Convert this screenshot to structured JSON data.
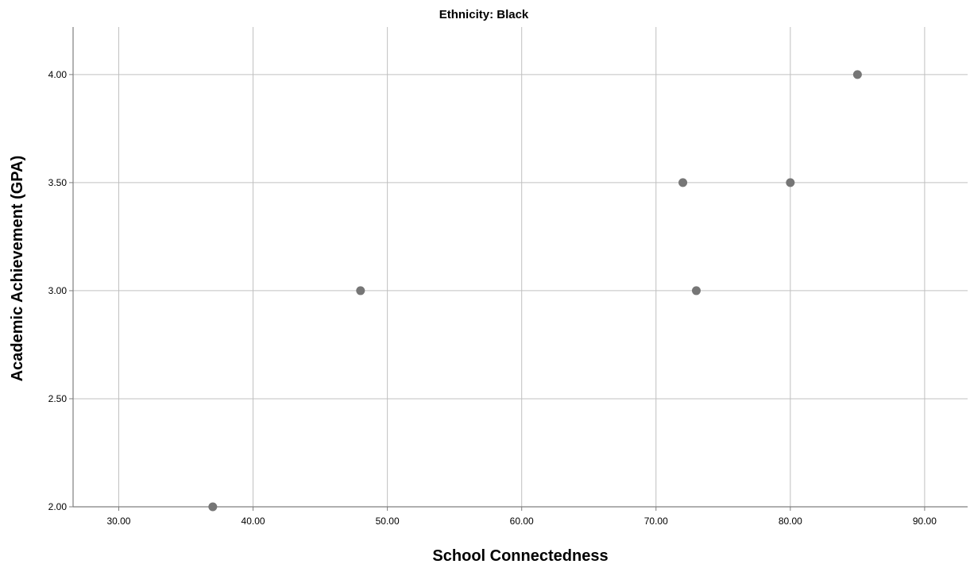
{
  "chart_data": {
    "type": "scatter",
    "title": "Ethnicity: Black",
    "xlabel": "School Connectedness",
    "ylabel": "Academic Achievement (GPA)",
    "xlim": [
      26.6,
      93.2
    ],
    "ylim": [
      2.0,
      4.22
    ],
    "xticks": [
      30,
      40,
      50,
      60,
      70,
      80,
      90
    ],
    "xtick_labels": [
      "30.00",
      "40.00",
      "50.00",
      "60.00",
      "70.00",
      "80.00",
      "90.00"
    ],
    "yticks": [
      2.0,
      2.5,
      3.0,
      3.5,
      4.0
    ],
    "ytick_labels": [
      "2.00",
      "2.50",
      "3.00",
      "3.50",
      "4.00"
    ],
    "grid": true,
    "legend": false,
    "points": [
      {
        "x": 37,
        "y": 2.0
      },
      {
        "x": 48,
        "y": 3.0
      },
      {
        "x": 72,
        "y": 3.5
      },
      {
        "x": 73,
        "y": 3.0
      },
      {
        "x": 80,
        "y": 3.5
      },
      {
        "x": 85,
        "y": 4.0
      }
    ],
    "colors": {
      "marker": "#767676",
      "grid": "#c0c0c0",
      "axis": "#7f7f7f"
    }
  }
}
